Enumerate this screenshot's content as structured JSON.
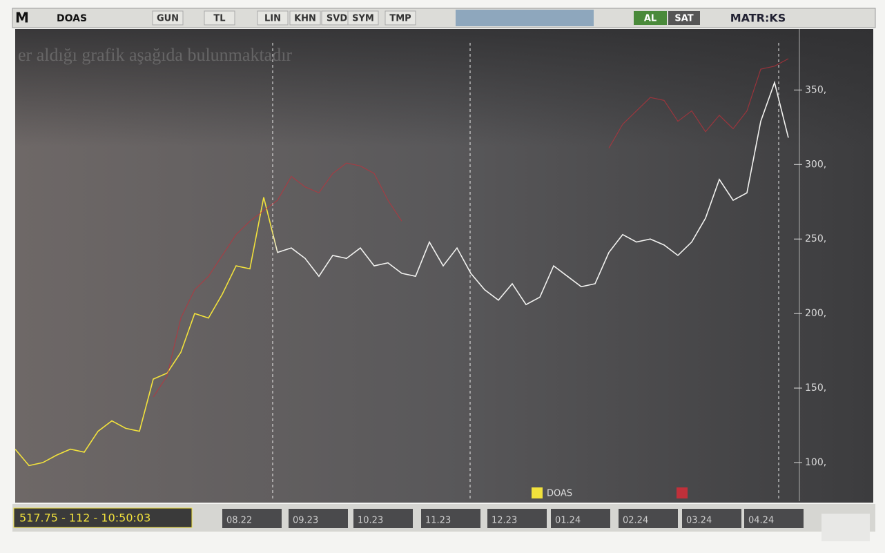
{
  "toolbar": {
    "logo": "M",
    "symbol": "DOAS",
    "buttons": [
      "GUN",
      "TL",
      "LIN",
      "KHN",
      "SVD",
      "SYM",
      "TMP"
    ],
    "al": "AL",
    "sat": "SAT",
    "brand": "MATR:KS"
  },
  "overlay_text": "er aldığı grafik aşağıda bulunmaktadır",
  "status": "517.75 - 112 - 10:50:03",
  "time_labels": [
    "08.22",
    "09.23",
    "10.23",
    "11.23",
    "12.23",
    "01.24",
    "02.24",
    "03.24",
    "04.24"
  ],
  "chart_data": {
    "type": "line",
    "categories": [
      null,
      null,
      null,
      null,
      null,
      null,
      null,
      null,
      null,
      null,
      null,
      null,
      null,
      null,
      null,
      null,
      null,
      null,
      null,
      null,
      null,
      null,
      null,
      null,
      null,
      null,
      null,
      null,
      null,
      null,
      null,
      null,
      null,
      null,
      null,
      null,
      null,
      null,
      null,
      null,
      null,
      null,
      null,
      null,
      null,
      null,
      null,
      null,
      null,
      null,
      null,
      null,
      null,
      null,
      null,
      null,
      null
    ],
    "series": [
      {
        "name": "DOAS",
        "color": "#f2e23c",
        "values": [
          109,
          98,
          100,
          105,
          109,
          107,
          121,
          128,
          123,
          121,
          156,
          160,
          174,
          200,
          197,
          213,
          232,
          230,
          278,
          241,
          244,
          237,
          225,
          239,
          237,
          244,
          232,
          234,
          227,
          225,
          248,
          232,
          244,
          227,
          216,
          209,
          220,
          206,
          211,
          232,
          225,
          218,
          220,
          241,
          253,
          248,
          250,
          246,
          239,
          248,
          264,
          290,
          276,
          281,
          329,
          355,
          318
        ]
      },
      {
        "color": "#c0303a",
        "values": [
          null,
          null,
          null,
          null,
          null,
          null,
          null,
          null,
          null,
          null,
          144,
          158,
          197,
          216,
          225,
          239,
          253,
          262,
          269,
          276,
          292,
          285,
          281,
          294,
          301,
          299,
          294,
          276,
          262,
          null,
          null,
          null,
          null,
          null,
          null,
          null,
          null,
          null,
          null,
          null,
          null,
          null,
          null,
          311,
          327,
          336,
          345,
          343,
          329,
          336,
          322,
          333,
          324,
          336,
          364,
          366,
          371
        ]
      }
    ],
    "ylim": [
      75,
      390
    ],
    "yticks": [
      {
        "value": 100,
        "label": "100,"
      },
      {
        "value": 150,
        "label": "150,"
      },
      {
        "value": 200,
        "label": "200,"
      },
      {
        "value": 250,
        "label": "250,"
      },
      {
        "value": 300,
        "label": "300,"
      },
      {
        "value": 350,
        "label": "350,"
      }
    ]
  }
}
